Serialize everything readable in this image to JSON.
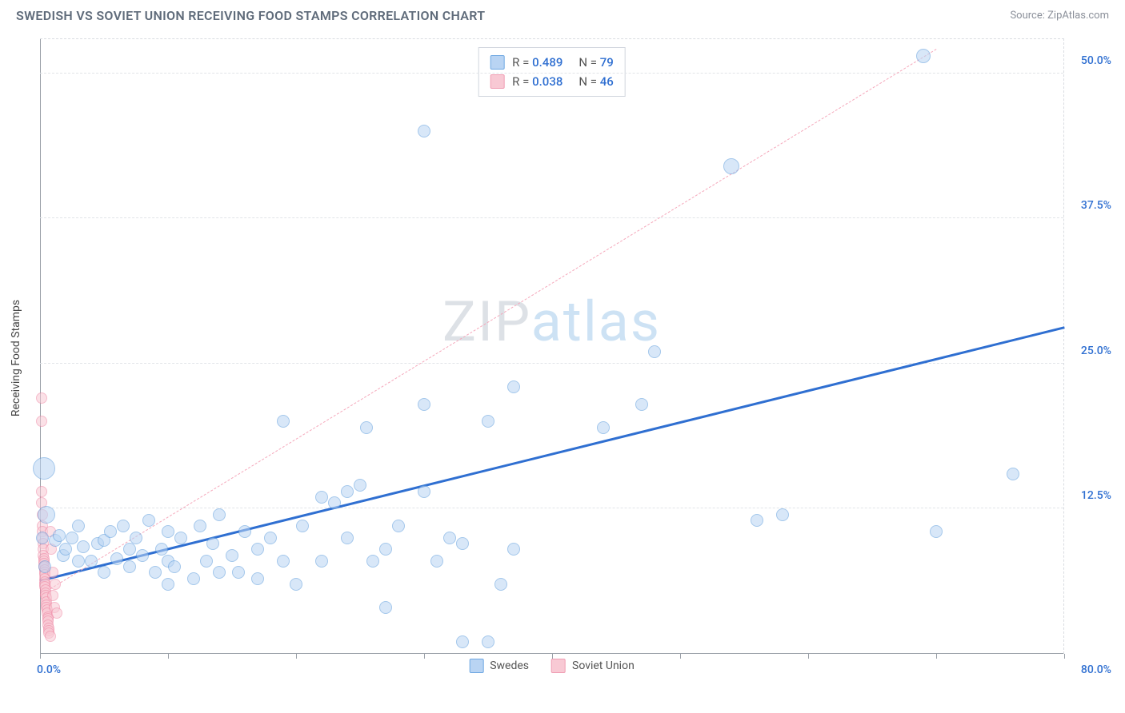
{
  "header": {
    "title": "SWEDISH VS SOVIET UNION RECEIVING FOOD STAMPS CORRELATION CHART",
    "source_label": "Source:",
    "source_name": "ZipAtlas.com"
  },
  "chart": {
    "type": "scatter",
    "y_axis_title": "Receiving Food Stamps",
    "x_origin_label": "0.0%",
    "x_max_label": "80.0%",
    "xlim": [
      0,
      80
    ],
    "ylim": [
      0,
      53
    ],
    "x_ticks": [
      0,
      10,
      20,
      30,
      40,
      50,
      60,
      70,
      80
    ],
    "y_ticks": [
      {
        "v": 12.5,
        "label": "12.5%"
      },
      {
        "v": 25.0,
        "label": "25.0%"
      },
      {
        "v": 37.5,
        "label": "37.5%"
      },
      {
        "v": 50.0,
        "label": "50.0%"
      }
    ],
    "background_color": "#ffffff",
    "grid_color": "#e1e4e8",
    "axis_color": "#9aa0a8",
    "watermark": {
      "part_a": "ZIP",
      "part_b": "atlas"
    },
    "series": [
      {
        "id": "swedes",
        "label": "Swedes",
        "fill": "#b9d4f3",
        "stroke": "#5a9bdc",
        "fill_opacity": 0.55,
        "marker_r": 8,
        "trend": {
          "x1": 0,
          "y1": 6.2,
          "x2": 80,
          "y2": 28.0,
          "color": "#2f6fd1",
          "width": 3,
          "dash": "solid"
        },
        "stat": {
          "R": "0.489",
          "N": "79",
          "swatch_fill": "#b9d4f3",
          "swatch_stroke": "#6fa8e2",
          "value_color": "#2f6fd1"
        },
        "points": [
          {
            "x": 0.2,
            "y": 10.0
          },
          {
            "x": 0.3,
            "y": 16.0,
            "r": 14
          },
          {
            "x": 0.5,
            "y": 12.0,
            "r": 11
          },
          {
            "x": 0.4,
            "y": 7.5
          },
          {
            "x": 1.2,
            "y": 9.8
          },
          {
            "x": 1.5,
            "y": 10.2
          },
          {
            "x": 1.8,
            "y": 8.5
          },
          {
            "x": 2.0,
            "y": 9.0
          },
          {
            "x": 2.5,
            "y": 10.0
          },
          {
            "x": 3.0,
            "y": 11.0
          },
          {
            "x": 3.0,
            "y": 8.0
          },
          {
            "x": 3.4,
            "y": 9.2
          },
          {
            "x": 4.0,
            "y": 8.0
          },
          {
            "x": 4.5,
            "y": 9.5
          },
          {
            "x": 5.0,
            "y": 7.0
          },
          {
            "x": 5.0,
            "y": 9.8
          },
          {
            "x": 5.5,
            "y": 10.5
          },
          {
            "x": 6.0,
            "y": 8.2
          },
          {
            "x": 6.5,
            "y": 11.0
          },
          {
            "x": 7.0,
            "y": 9.0
          },
          {
            "x": 7.0,
            "y": 7.5
          },
          {
            "x": 7.5,
            "y": 10.0
          },
          {
            "x": 8.0,
            "y": 8.5
          },
          {
            "x": 8.5,
            "y": 11.5
          },
          {
            "x": 9.0,
            "y": 7.0
          },
          {
            "x": 9.5,
            "y": 9.0
          },
          {
            "x": 10.0,
            "y": 8.0
          },
          {
            "x": 10.0,
            "y": 10.5
          },
          {
            "x": 10.5,
            "y": 7.5
          },
          {
            "x": 11.0,
            "y": 10.0
          },
          {
            "x": 12.0,
            "y": 6.5
          },
          {
            "x": 12.5,
            "y": 11.0
          },
          {
            "x": 13.0,
            "y": 8.0
          },
          {
            "x": 13.5,
            "y": 9.5
          },
          {
            "x": 14.0,
            "y": 7.0
          },
          {
            "x": 14.0,
            "y": 12.0
          },
          {
            "x": 15.0,
            "y": 8.5
          },
          {
            "x": 15.5,
            "y": 7.0
          },
          {
            "x": 16.0,
            "y": 10.5
          },
          {
            "x": 17.0,
            "y": 6.5
          },
          {
            "x": 17.0,
            "y": 9.0
          },
          {
            "x": 18.0,
            "y": 10.0
          },
          {
            "x": 19.0,
            "y": 8.0
          },
          {
            "x": 19.0,
            "y": 20.0
          },
          {
            "x": 20.0,
            "y": 6.0
          },
          {
            "x": 20.5,
            "y": 11.0
          },
          {
            "x": 22.0,
            "y": 13.5
          },
          {
            "x": 22.0,
            "y": 8.0
          },
          {
            "x": 23.0,
            "y": 13.0
          },
          {
            "x": 24.0,
            "y": 14.0
          },
          {
            "x": 24.0,
            "y": 10.0
          },
          {
            "x": 25.0,
            "y": 14.5
          },
          {
            "x": 25.5,
            "y": 19.5
          },
          {
            "x": 26.0,
            "y": 8.0
          },
          {
            "x": 27.0,
            "y": 9.0
          },
          {
            "x": 27.0,
            "y": 4.0
          },
          {
            "x": 28.0,
            "y": 11.0
          },
          {
            "x": 30.0,
            "y": 21.5
          },
          {
            "x": 30.0,
            "y": 45.0
          },
          {
            "x": 30.0,
            "y": 14.0
          },
          {
            "x": 31.0,
            "y": 8.0
          },
          {
            "x": 32.0,
            "y": 10.0
          },
          {
            "x": 33.0,
            "y": 9.5
          },
          {
            "x": 33.0,
            "y": 1.0
          },
          {
            "x": 35.0,
            "y": 1.0
          },
          {
            "x": 35.0,
            "y": 20.0
          },
          {
            "x": 36.0,
            "y": 6.0
          },
          {
            "x": 37.0,
            "y": 9.0
          },
          {
            "x": 37.0,
            "y": 23.0
          },
          {
            "x": 44.0,
            "y": 19.5
          },
          {
            "x": 47.0,
            "y": 21.5
          },
          {
            "x": 48.0,
            "y": 26.0
          },
          {
            "x": 54.0,
            "y": 42.0,
            "r": 10
          },
          {
            "x": 56.0,
            "y": 11.5
          },
          {
            "x": 58.0,
            "y": 12.0
          },
          {
            "x": 69.0,
            "y": 51.5,
            "r": 9
          },
          {
            "x": 70.0,
            "y": 10.5
          },
          {
            "x": 76.0,
            "y": 15.5
          },
          {
            "x": 10.0,
            "y": 6.0
          }
        ]
      },
      {
        "id": "soviet",
        "label": "Soviet Union",
        "fill": "#f8c9d4",
        "stroke": "#ef87a4",
        "fill_opacity": 0.55,
        "marker_r": 7,
        "trend": {
          "x1": 0,
          "y1": 5.0,
          "x2": 70,
          "y2": 52.0,
          "color": "#f5a8bb",
          "width": 1.5,
          "dash": "dashed"
        },
        "stat": {
          "R": "0.038",
          "N": "46",
          "swatch_fill": "#f8c9d4",
          "swatch_stroke": "#f09eb3",
          "value_color": "#2f6fd1"
        },
        "points": [
          {
            "x": 0.1,
            "y": 22.0
          },
          {
            "x": 0.1,
            "y": 20.0
          },
          {
            "x": 0.15,
            "y": 14.0
          },
          {
            "x": 0.15,
            "y": 13.0
          },
          {
            "x": 0.2,
            "y": 12.0
          },
          {
            "x": 0.2,
            "y": 11.0
          },
          {
            "x": 0.2,
            "y": 10.5
          },
          {
            "x": 0.2,
            "y": 10.0
          },
          {
            "x": 0.25,
            "y": 9.5
          },
          {
            "x": 0.25,
            "y": 9.0
          },
          {
            "x": 0.25,
            "y": 8.5
          },
          {
            "x": 0.3,
            "y": 8.2
          },
          {
            "x": 0.3,
            "y": 8.0
          },
          {
            "x": 0.3,
            "y": 7.8
          },
          {
            "x": 0.3,
            "y": 7.5
          },
          {
            "x": 0.35,
            "y": 7.2
          },
          {
            "x": 0.35,
            "y": 7.0
          },
          {
            "x": 0.35,
            "y": 6.8
          },
          {
            "x": 0.4,
            "y": 6.5
          },
          {
            "x": 0.4,
            "y": 6.2
          },
          {
            "x": 0.4,
            "y": 6.0
          },
          {
            "x": 0.4,
            "y": 5.8
          },
          {
            "x": 0.45,
            "y": 5.5
          },
          {
            "x": 0.45,
            "y": 5.2
          },
          {
            "x": 0.45,
            "y": 5.0
          },
          {
            "x": 0.5,
            "y": 4.8
          },
          {
            "x": 0.5,
            "y": 4.5
          },
          {
            "x": 0.5,
            "y": 4.2
          },
          {
            "x": 0.5,
            "y": 4.0
          },
          {
            "x": 0.55,
            "y": 3.8
          },
          {
            "x": 0.55,
            "y": 3.5
          },
          {
            "x": 0.6,
            "y": 3.2
          },
          {
            "x": 0.6,
            "y": 3.0
          },
          {
            "x": 0.6,
            "y": 2.8
          },
          {
            "x": 0.6,
            "y": 2.5
          },
          {
            "x": 0.7,
            "y": 2.2
          },
          {
            "x": 0.7,
            "y": 2.0
          },
          {
            "x": 0.7,
            "y": 1.8
          },
          {
            "x": 0.8,
            "y": 1.5
          },
          {
            "x": 0.8,
            "y": 10.5
          },
          {
            "x": 0.9,
            "y": 9.0
          },
          {
            "x": 1.0,
            "y": 7.0
          },
          {
            "x": 1.0,
            "y": 5.0
          },
          {
            "x": 1.1,
            "y": 4.0
          },
          {
            "x": 1.2,
            "y": 6.0
          },
          {
            "x": 1.3,
            "y": 3.5
          }
        ]
      }
    ],
    "legend": [
      {
        "label": "Swedes",
        "fill": "#b9d4f3",
        "stroke": "#6fa8e2"
      },
      {
        "label": "Soviet Union",
        "fill": "#f8c9d4",
        "stroke": "#f09eb3"
      }
    ],
    "tick_label_color": "#2f6fd1"
  }
}
